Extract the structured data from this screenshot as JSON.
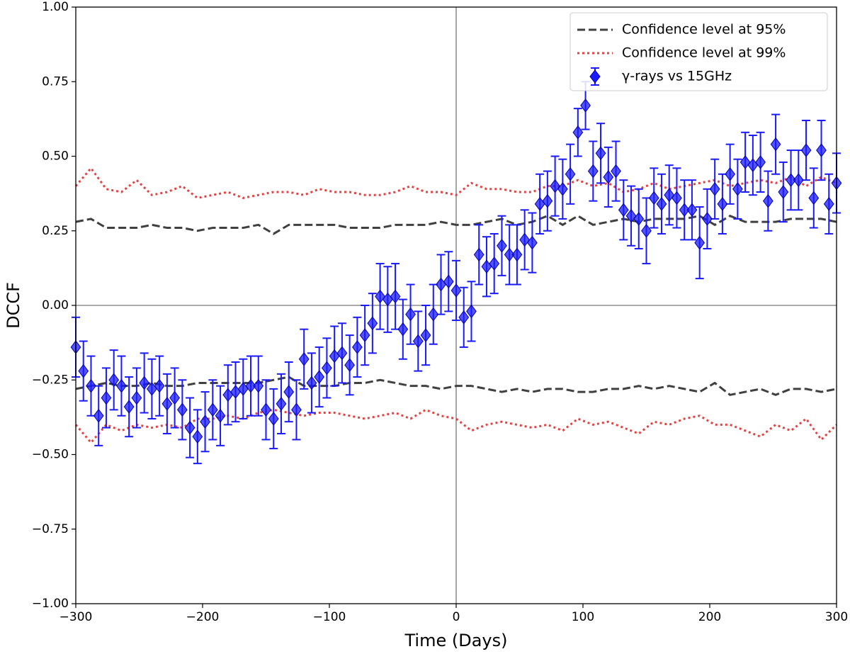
{
  "chart_data": {
    "type": "errorbar",
    "x_label": "Time (Days)",
    "y_label": "DCCF",
    "xlim": [
      -300,
      300
    ],
    "ylim": [
      -1,
      1
    ],
    "xticks": [
      {
        "value": -300,
        "label": "−300"
      },
      {
        "value": -200,
        "label": "−200"
      },
      {
        "value": -100,
        "label": "−100"
      },
      0,
      100,
      200,
      300
    ],
    "yticks": [
      {
        "value": -1,
        "label": "−1.00"
      },
      {
        "value": -0.75,
        "label": "−0.75"
      },
      {
        "value": -0.5,
        "label": "−0.50"
      },
      {
        "value": -0.25,
        "label": "−0.25"
      },
      {
        "value": 0,
        "label": "0.00"
      },
      {
        "value": 0.25,
        "label": "0.25"
      },
      {
        "value": 0.5,
        "label": "0.50"
      },
      {
        "value": 0.75,
        "label": "0.75"
      },
      {
        "value": 1,
        "label": "1.00"
      }
    ],
    "reference_lines": {
      "x": 0,
      "y": 0
    },
    "legend": "upper right",
    "x": [
      -300,
      -294,
      -288,
      -282,
      -276,
      -270,
      -264,
      -258,
      -252,
      -246,
      -240,
      -234,
      -228,
      -222,
      -216,
      -210,
      -204,
      -198,
      -192,
      -186,
      -180,
      -174,
      -168,
      -162,
      -156,
      -150,
      -144,
      -138,
      -132,
      -126,
      -120,
      -114,
      -108,
      -102,
      -96,
      -90,
      -84,
      -78,
      -72,
      -66,
      -60,
      -54,
      -48,
      -42,
      -36,
      -30,
      -24,
      -18,
      -12,
      -6,
      0,
      6,
      12,
      18,
      24,
      30,
      36,
      42,
      48,
      54,
      60,
      66,
      72,
      78,
      84,
      90,
      96,
      102,
      108,
      114,
      120,
      126,
      132,
      138,
      144,
      150,
      156,
      162,
      168,
      174,
      180,
      186,
      192,
      198,
      204,
      210,
      216,
      222,
      228,
      234,
      240,
      246,
      252,
      258,
      264,
      270,
      276,
      282,
      288,
      294,
      300
    ],
    "series": [
      {
        "name": "γ-rays vs 15GHz",
        "color": "#1a1aff",
        "style": "errorbar",
        "values": [
          -0.14,
          -0.22,
          -0.27,
          -0.37,
          -0.31,
          -0.25,
          -0.27,
          -0.34,
          -0.31,
          -0.26,
          -0.28,
          -0.27,
          -0.33,
          -0.31,
          -0.35,
          -0.41,
          -0.44,
          -0.39,
          -0.35,
          -0.37,
          -0.3,
          -0.29,
          -0.28,
          -0.27,
          -0.27,
          -0.35,
          -0.38,
          -0.33,
          -0.29,
          -0.35,
          -0.18,
          -0.26,
          -0.24,
          -0.21,
          -0.17,
          -0.16,
          -0.2,
          -0.14,
          -0.1,
          -0.06,
          0.03,
          0.02,
          0.03,
          -0.08,
          -0.03,
          -0.12,
          -0.1,
          -0.03,
          0.07,
          0.08,
          0.05,
          -0.04,
          -0.02,
          0.17,
          0.13,
          0.14,
          0.2,
          0.17,
          0.17,
          0.22,
          0.21,
          0.34,
          0.35,
          0.4,
          0.39,
          0.44,
          0.58,
          0.67,
          0.45,
          0.51,
          0.43,
          0.45,
          0.32,
          0.3,
          0.29,
          0.25,
          0.36,
          0.34,
          0.37,
          0.36,
          0.32,
          0.32,
          0.21,
          0.29,
          0.39,
          0.34,
          0.44,
          0.39,
          0.48,
          0.47,
          0.48,
          0.35,
          0.54,
          0.38,
          0.42,
          0.42,
          0.52,
          0.36,
          0.52,
          0.34,
          0.41
        ],
        "errors": [
          0.1,
          0.1,
          0.1,
          0.1,
          0.1,
          0.1,
          0.1,
          0.1,
          0.1,
          0.1,
          0.1,
          0.1,
          0.1,
          0.1,
          0.1,
          0.1,
          0.09,
          0.1,
          0.1,
          0.1,
          0.1,
          0.1,
          0.1,
          0.1,
          0.1,
          0.1,
          0.1,
          0.1,
          0.1,
          0.1,
          0.1,
          0.1,
          0.1,
          0.1,
          0.1,
          0.1,
          0.1,
          0.1,
          0.1,
          0.1,
          0.11,
          0.11,
          0.11,
          0.1,
          0.1,
          0.1,
          0.1,
          0.1,
          0.1,
          0.1,
          0.1,
          0.1,
          0.1,
          0.1,
          0.1,
          0.1,
          0.1,
          0.1,
          0.1,
          0.1,
          0.1,
          0.1,
          0.1,
          0.1,
          0.1,
          0.1,
          0.08,
          0.08,
          0.1,
          0.1,
          0.1,
          0.1,
          0.1,
          0.1,
          0.1,
          0.11,
          0.1,
          0.1,
          0.1,
          0.1,
          0.1,
          0.1,
          0.12,
          0.1,
          0.1,
          0.1,
          0.1,
          0.1,
          0.1,
          0.1,
          0.1,
          0.1,
          0.1,
          0.1,
          0.1,
          0.1,
          0.1,
          0.1,
          0.1,
          0.1,
          0.1
        ]
      },
      {
        "name": "Confidence level at 95%",
        "color": "#404040",
        "style": "dashed",
        "x": [
          -300,
          -288,
          -276,
          -264,
          -252,
          -240,
          -228,
          -216,
          -204,
          -192,
          -180,
          -168,
          -156,
          -144,
          -132,
          -120,
          -108,
          -96,
          -84,
          -72,
          -60,
          -48,
          -36,
          -24,
          -12,
          0,
          12,
          24,
          36,
          48,
          60,
          72,
          84,
          96,
          108,
          120,
          132,
          144,
          156,
          168,
          180,
          192,
          204,
          216,
          228,
          240,
          252,
          264,
          276,
          288,
          300
        ],
        "values": [
          0.28,
          0.29,
          0.26,
          0.26,
          0.26,
          0.27,
          0.26,
          0.26,
          0.25,
          0.26,
          0.26,
          0.26,
          0.27,
          0.24,
          0.27,
          0.27,
          0.27,
          0.27,
          0.26,
          0.26,
          0.26,
          0.27,
          0.27,
          0.27,
          0.28,
          0.27,
          0.27,
          0.28,
          0.29,
          0.27,
          0.28,
          0.3,
          0.27,
          0.3,
          0.27,
          0.28,
          0.29,
          0.28,
          0.29,
          0.29,
          0.29,
          0.3,
          0.27,
          0.3,
          0.28,
          0.28,
          0.28,
          0.29,
          0.29,
          0.29,
          0.28
        ],
        "lower": [
          -0.28,
          -0.27,
          -0.26,
          -0.27,
          -0.27,
          -0.26,
          -0.27,
          -0.27,
          -0.26,
          -0.26,
          -0.26,
          -0.26,
          -0.26,
          -0.25,
          -0.24,
          -0.27,
          -0.27,
          -0.27,
          -0.26,
          -0.26,
          -0.25,
          -0.26,
          -0.27,
          -0.27,
          -0.28,
          -0.27,
          -0.27,
          -0.28,
          -0.29,
          -0.28,
          -0.29,
          -0.28,
          -0.28,
          -0.29,
          -0.29,
          -0.28,
          -0.28,
          -0.27,
          -0.28,
          -0.27,
          -0.28,
          -0.29,
          -0.26,
          -0.3,
          -0.29,
          -0.28,
          -0.3,
          -0.28,
          -0.28,
          -0.29,
          -0.28
        ]
      },
      {
        "name": "Confidence level at 99%",
        "color": "#e84040",
        "style": "dotted",
        "x": [
          -300,
          -288,
          -276,
          -264,
          -252,
          -240,
          -228,
          -216,
          -204,
          -192,
          -180,
          -168,
          -156,
          -144,
          -132,
          -120,
          -108,
          -96,
          -84,
          -72,
          -60,
          -48,
          -36,
          -24,
          -12,
          0,
          12,
          24,
          36,
          48,
          60,
          72,
          84,
          96,
          108,
          120,
          132,
          144,
          156,
          168,
          180,
          192,
          204,
          216,
          228,
          240,
          252,
          264,
          276,
          288,
          300
        ],
        "values": [
          0.4,
          0.46,
          0.39,
          0.38,
          0.42,
          0.37,
          0.38,
          0.4,
          0.36,
          0.37,
          0.38,
          0.36,
          0.37,
          0.38,
          0.38,
          0.37,
          0.39,
          0.38,
          0.38,
          0.37,
          0.37,
          0.38,
          0.4,
          0.38,
          0.38,
          0.37,
          0.41,
          0.39,
          0.39,
          0.38,
          0.38,
          0.4,
          0.4,
          0.42,
          0.4,
          0.41,
          0.38,
          0.39,
          0.41,
          0.39,
          0.4,
          0.41,
          0.42,
          0.4,
          0.41,
          0.42,
          0.41,
          0.43,
          0.4,
          0.43,
          0.41
        ],
        "lower": [
          -0.4,
          -0.46,
          -0.4,
          -0.42,
          -0.4,
          -0.41,
          -0.4,
          -0.41,
          -0.38,
          -0.38,
          -0.37,
          -0.38,
          -0.36,
          -0.35,
          -0.36,
          -0.37,
          -0.36,
          -0.36,
          -0.37,
          -0.38,
          -0.37,
          -0.36,
          -0.38,
          -0.35,
          -0.37,
          -0.38,
          -0.42,
          -0.4,
          -0.39,
          -0.4,
          -0.41,
          -0.4,
          -0.42,
          -0.38,
          -0.4,
          -0.39,
          -0.41,
          -0.43,
          -0.39,
          -0.4,
          -0.38,
          -0.37,
          -0.4,
          -0.4,
          -0.42,
          -0.44,
          -0.4,
          -0.42,
          -0.38,
          -0.45,
          -0.4
        ]
      }
    ]
  }
}
